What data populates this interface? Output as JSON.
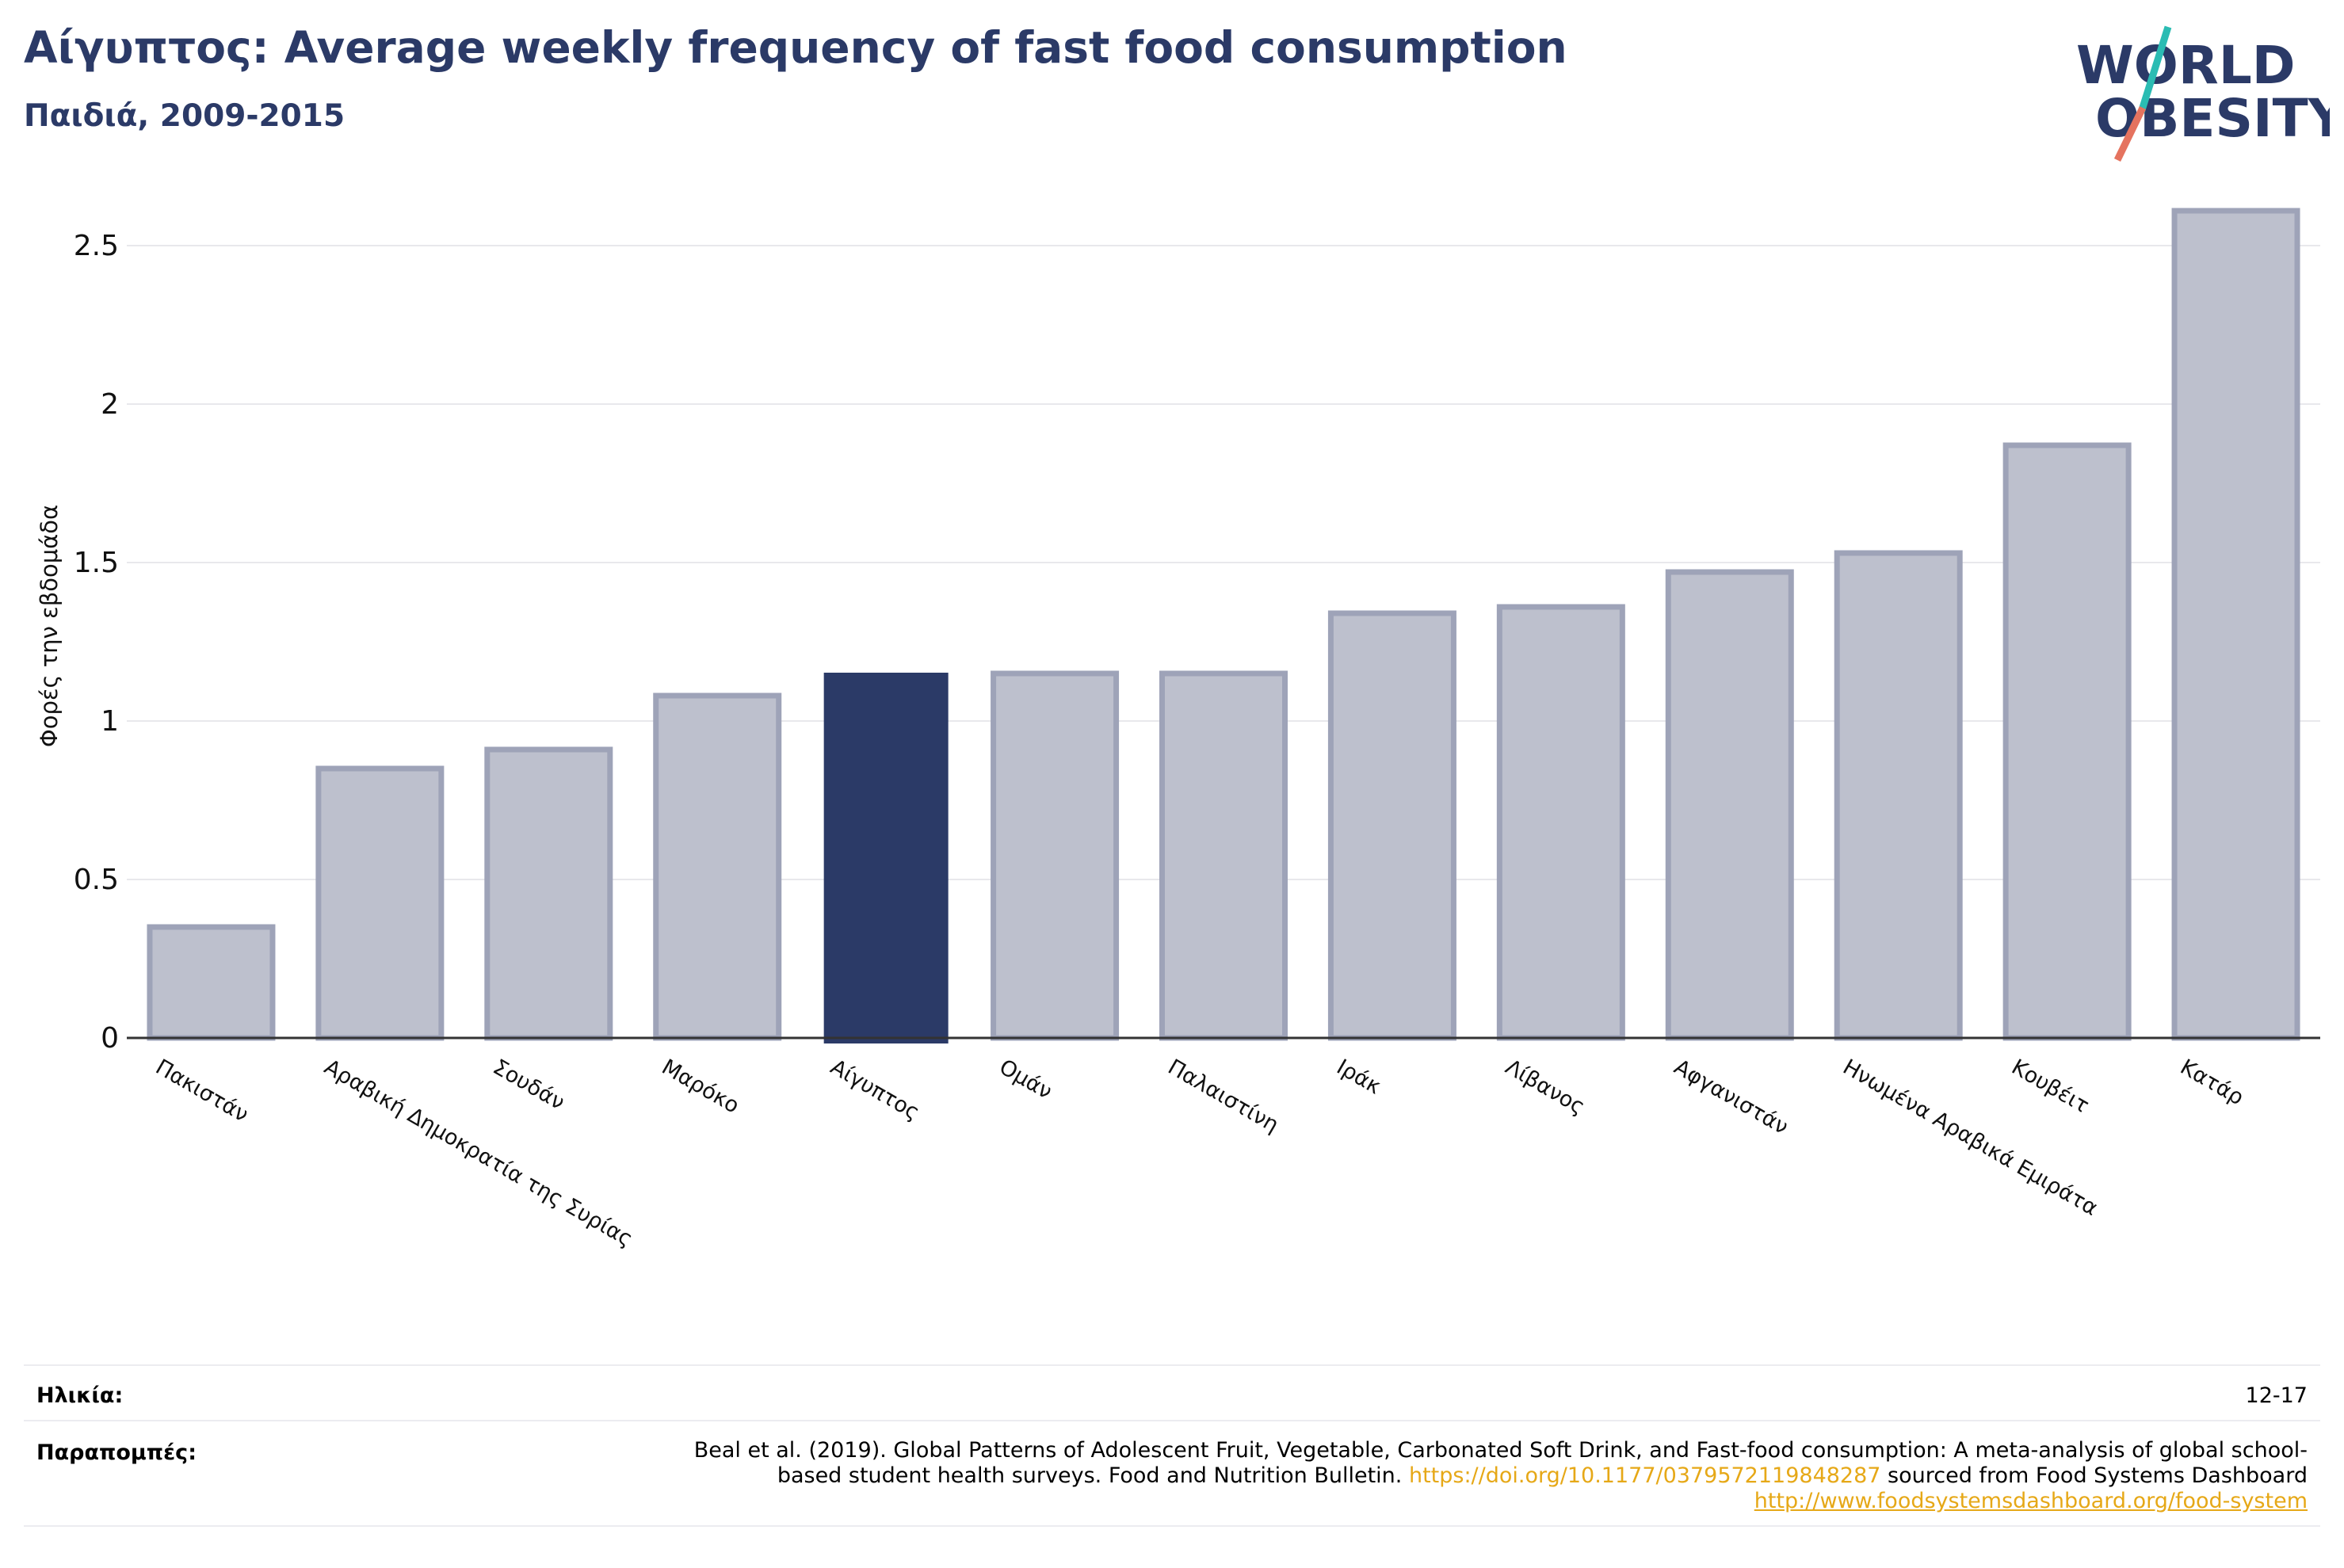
{
  "header": {
    "title": "Αίγυπτος: Average weekly frequency of fast food consumption",
    "subtitle": "Παιδιά, 2009-2015"
  },
  "logo": {
    "line1": "WORLD",
    "line2": "OBESITY",
    "accent": "#2bbcb3",
    "accent2": "#e5735f"
  },
  "colors": {
    "primary": "#2b3a67",
    "bar_fill": "#bdc0cd",
    "bar_stroke": "#9ea3b8",
    "grid": "#e8e8ec",
    "link": "#e6a817"
  },
  "chart_data": {
    "type": "bar",
    "ylabel": "Φορές την εβδομάδα",
    "ylim": [
      0,
      2.65
    ],
    "yticks": [
      0,
      0.5,
      1,
      1.5,
      2,
      2.5
    ],
    "ytick_labels": [
      "0",
      "0.5",
      "1",
      "1.5",
      "2",
      "2.5"
    ],
    "categories": [
      "Πακιστάν",
      "Αραβική Δημοκρατία της Συρίας",
      "Σουδάν",
      "Μαρόκο",
      "Αίγυπτος",
      "Ομάν",
      "Παλαιστίνη",
      "Ιράκ",
      "Λίβανος",
      "Αφγανιστάν",
      "Ηνωμένα Αραβικά Εμιράτα",
      "Κουβέιτ",
      "Κατάρ"
    ],
    "values": [
      0.35,
      0.85,
      0.91,
      1.08,
      1.15,
      1.15,
      1.15,
      1.34,
      1.36,
      1.47,
      1.53,
      1.87,
      2.61
    ],
    "highlight": "Αίγυπτος",
    "grid": true
  },
  "footer": {
    "age_label": "Ηλικία:",
    "age_value": "12-17",
    "refs_label": "Παραπομπές:",
    "refs_text1": "Beal et al. (2019). Global Patterns of Adolescent Fruit, Vegetable, Carbonated Soft Drink, and Fast-food consumption: A meta-analysis of global school-based student health surveys. Food and Nutrition Bulletin. ",
    "refs_link1": "https://doi.org/10.1177/0379572119848287",
    "refs_text2": " sourced from Food Systems Dashboard ",
    "refs_link2": "http://www.foodsystemsdashboard.org/food-system"
  }
}
